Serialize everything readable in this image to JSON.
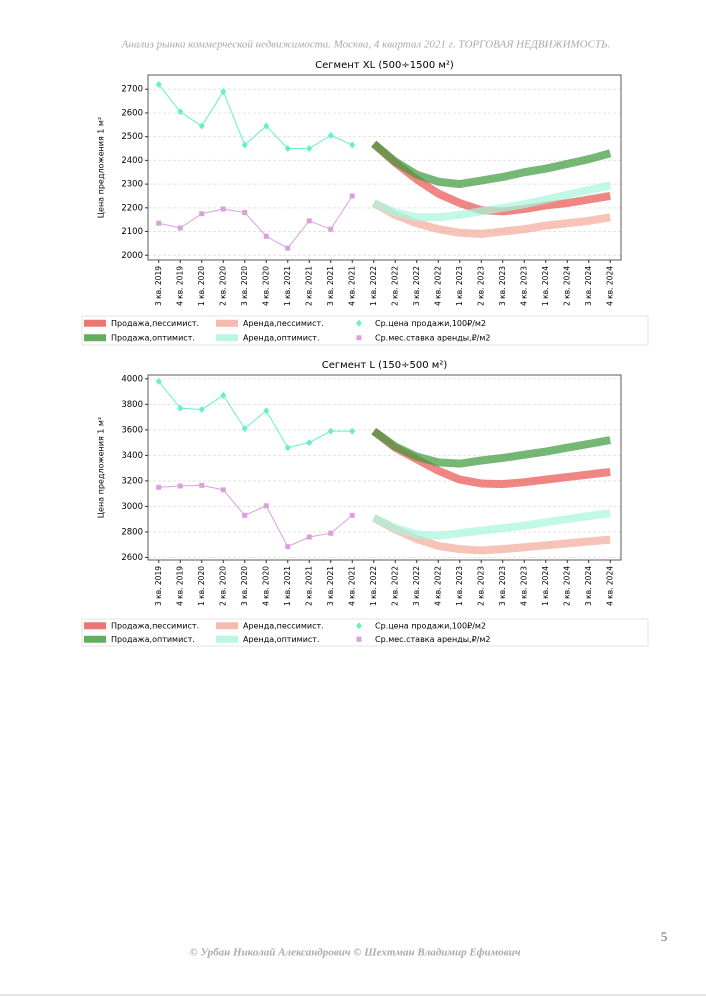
{
  "header": {
    "title": "Анализ рынка коммерческой недвижимости.  Москва,  4 квартал 2021 г.  ТОРГОВАЯ НЕДВИЖИМОСТЬ."
  },
  "chart_data": [
    {
      "type": "line",
      "title": "Сегмент XL (500÷1500 м²)",
      "y_label": "Цена предложения 1 м²",
      "categories": [
        "3 кв. 2019",
        "4 кв. 2019",
        "1 кв. 2020",
        "2 кв. 2020",
        "3 кв. 2020",
        "4 кв. 2020",
        "1 кв. 2021",
        "2 кв. 2021",
        "3 кв. 2021",
        "4 кв. 2021",
        "1 кв. 2022",
        "2 кв. 2022",
        "3 кв. 2022",
        "4 кв. 2022",
        "1 кв. 2023",
        "2 кв. 2023",
        "3 кв. 2023",
        "4 кв. 2023",
        "1 кв. 2024",
        "2 кв. 2024",
        "3 кв. 2024",
        "4 кв. 2024"
      ],
      "ylim": [
        1980,
        2760
      ],
      "yticks": [
        2000,
        2100,
        2200,
        2300,
        2400,
        2500,
        2600,
        2700
      ],
      "grid": true,
      "series": [
        {
          "name": "Продажа,пессимист.",
          "color": "#e8534f",
          "style": "band",
          "values": [
            null,
            null,
            null,
            null,
            null,
            null,
            null,
            null,
            null,
            null,
            2470,
            2390,
            2320,
            2260,
            2220,
            2190,
            2185,
            2195,
            2210,
            2220,
            2235,
            2250
          ]
        },
        {
          "name": "Продажа,оптимист.",
          "color": "#3a9a3a",
          "style": "band",
          "values": [
            null,
            null,
            null,
            null,
            null,
            null,
            null,
            null,
            null,
            null,
            2470,
            2395,
            2340,
            2310,
            2300,
            2315,
            2330,
            2350,
            2365,
            2385,
            2405,
            2430
          ]
        },
        {
          "name": "Аренда,пессимист.",
          "color": "#f4a99a",
          "style": "band",
          "values": [
            null,
            null,
            null,
            null,
            null,
            null,
            null,
            null,
            null,
            null,
            2220,
            2170,
            2135,
            2110,
            2095,
            2090,
            2100,
            2110,
            2125,
            2135,
            2145,
            2160
          ]
        },
        {
          "name": "Аренда,оптимист.",
          "color": "#a8f5dc",
          "style": "band",
          "values": [
            null,
            null,
            null,
            null,
            null,
            null,
            null,
            null,
            null,
            null,
            2220,
            2180,
            2160,
            2160,
            2170,
            2185,
            2200,
            2215,
            2235,
            2255,
            2275,
            2295
          ]
        },
        {
          "name": "Ср.цена продажи,100₽/м2",
          "color": "#66f0c8",
          "style": "diamond",
          "values": [
            2720,
            2605,
            2545,
            2690,
            2465,
            2545,
            2450,
            2450,
            2505,
            2465,
            null,
            null,
            null,
            null,
            null,
            null,
            null,
            null,
            null,
            null,
            null,
            null
          ]
        },
        {
          "name": "Ср.мес.ставка аренды,₽/м2",
          "color": "#d9a0dd",
          "style": "square",
          "values": [
            2135,
            2115,
            2175,
            2195,
            2180,
            2080,
            2030,
            2145,
            2110,
            2250,
            null,
            null,
            null,
            null,
            null,
            null,
            null,
            null,
            null,
            null,
            null,
            null
          ]
        }
      ]
    },
    {
      "type": "line",
      "title": "Сегмент L (150÷500 м²)",
      "y_label": "Цена предложения 1 м²",
      "categories": [
        "3 кв. 2019",
        "4 кв. 2019",
        "1 кв. 2020",
        "2 кв. 2020",
        "3 кв. 2020",
        "4 кв. 2020",
        "1 кв. 2021",
        "2 кв. 2021",
        "3 кв. 2021",
        "4 кв. 2021",
        "1 кв. 2022",
        "2 кв. 2022",
        "3 кв. 2022",
        "4 кв. 2022",
        "1 кв. 2023",
        "2 кв. 2023",
        "3 кв. 2023",
        "4 кв. 2023",
        "1 кв. 2024",
        "2 кв. 2024",
        "3 кв. 2024",
        "4 кв. 2024"
      ],
      "ylim": [
        2580,
        4030
      ],
      "yticks": [
        2600,
        2800,
        3000,
        3200,
        3400,
        3600,
        3800,
        4000
      ],
      "grid": true,
      "series": [
        {
          "name": "Продажа,пессимист.",
          "color": "#e8534f",
          "style": "band",
          "values": [
            null,
            null,
            null,
            null,
            null,
            null,
            null,
            null,
            null,
            null,
            3590,
            3460,
            3370,
            3280,
            3210,
            3180,
            3175,
            3190,
            3210,
            3230,
            3250,
            3270
          ]
        },
        {
          "name": "Продажа,оптимист.",
          "color": "#3a9a3a",
          "style": "band",
          "values": [
            null,
            null,
            null,
            null,
            null,
            null,
            null,
            null,
            null,
            null,
            3590,
            3470,
            3390,
            3345,
            3335,
            3360,
            3380,
            3405,
            3430,
            3460,
            3490,
            3520
          ]
        },
        {
          "name": "Аренда,пессимист.",
          "color": "#f4a99a",
          "style": "band",
          "values": [
            null,
            null,
            null,
            null,
            null,
            null,
            null,
            null,
            null,
            null,
            2910,
            2820,
            2745,
            2690,
            2665,
            2655,
            2665,
            2680,
            2695,
            2710,
            2725,
            2740
          ]
        },
        {
          "name": "Аренда,оптимист.",
          "color": "#a8f5dc",
          "style": "band",
          "values": [
            null,
            null,
            null,
            null,
            null,
            null,
            null,
            null,
            null,
            null,
            2910,
            2830,
            2780,
            2770,
            2790,
            2810,
            2830,
            2850,
            2875,
            2900,
            2925,
            2945
          ]
        },
        {
          "name": "Ср.цена продажи,100₽/м2",
          "color": "#66f0c8",
          "style": "diamond",
          "values": [
            3980,
            3770,
            3760,
            3870,
            3610,
            3750,
            3460,
            3500,
            3590,
            3590,
            null,
            null,
            null,
            null,
            null,
            null,
            null,
            null,
            null,
            null,
            null,
            null
          ]
        },
        {
          "name": "Ср.мес.ставка аренды,₽/м2",
          "color": "#d9a0dd",
          "style": "square",
          "values": [
            3150,
            3160,
            3165,
            3130,
            2930,
            3005,
            2685,
            2760,
            2790,
            2930,
            null,
            null,
            null,
            null,
            null,
            null,
            null,
            null,
            null,
            null,
            null,
            null
          ]
        }
      ]
    }
  ],
  "footer": {
    "authors": "© Урбан Николай Александрович   © Шехтман Владимир Ефимович",
    "page_number": "5"
  }
}
